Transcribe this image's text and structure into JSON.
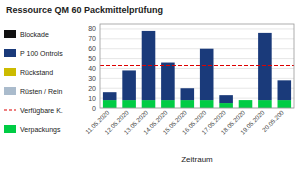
{
  "chart_data": {
    "type": "bar",
    "stacked": true,
    "title": "Ressource QM 60 Packmittelprüfung",
    "x_label": "Zeitraum",
    "categories": [
      "11.05.2020",
      "12.05.2020",
      "13.05.2020",
      "14.05.2020",
      "15.05.2020",
      "16.05.2020",
      "17.05.2020",
      "18.05.2020",
      "19.05.2020",
      "20.05.200"
    ],
    "series": [
      {
        "name": "Blockade",
        "color": "#111111",
        "values": [
          null,
          null,
          null,
          null,
          null,
          null,
          null,
          null,
          null,
          null
        ]
      },
      {
        "name": "P 100 Ontrols",
        "color": "#1a3a7a",
        "values": [
          8,
          30,
          70,
          38,
          12,
          52,
          8,
          0,
          68,
          20
        ]
      },
      {
        "name": "Rückstand",
        "color": "#ccbb00",
        "values": [
          null,
          null,
          null,
          null,
          null,
          null,
          null,
          null,
          null,
          null
        ]
      },
      {
        "name": "Rüsten / Rein",
        "color": "#aabbcc",
        "values": [
          null,
          null,
          null,
          null,
          null,
          null,
          null,
          null,
          null,
          null
        ]
      },
      {
        "name": "Verfügbare K.",
        "type": "line",
        "line_style": "dashed",
        "color": "#dd0000",
        "value": 43
      },
      {
        "name": "Verpackungs",
        "color": "#00cc44",
        "values": [
          8,
          8,
          8,
          8,
          8,
          8,
          5,
          8,
          8,
          8
        ]
      }
    ],
    "ylim": [
      0,
      85
    ],
    "yticks": [
      0,
      10,
      20,
      30,
      40,
      50,
      60,
      70,
      80
    ],
    "grid": true,
    "legend": "left"
  }
}
